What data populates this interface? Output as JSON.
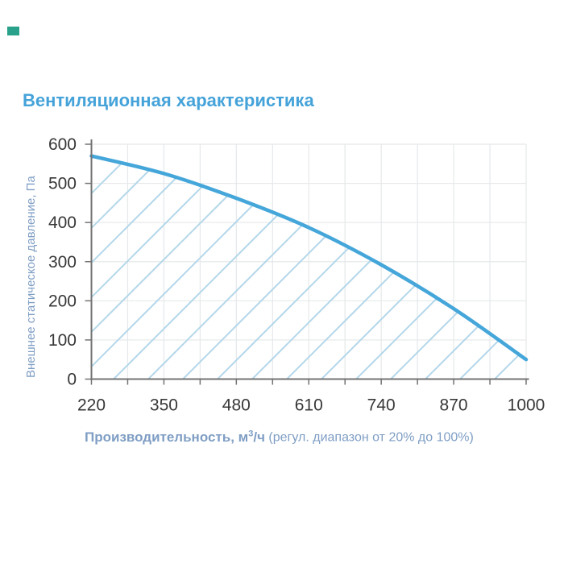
{
  "title": "Вентиляционная характеристика",
  "colors": {
    "title": "#45A3D9",
    "curve": "#45A6DA",
    "hatch": "#B3D7EA",
    "grid": "#E5E8EA",
    "axis": "#737373",
    "tick_text": "#383838",
    "axis_label_text": "#7F9EC4",
    "corner_mark": "#2AA18B",
    "background": "#FFFFFF"
  },
  "chart_data": {
    "type": "line",
    "title": "Вентиляционная характеристика",
    "xlabel": "Производительность, м³/ч (регул. диапазон от 20% до 100%)",
    "xlabel_base": "Производительность, м",
    "xlabel_sup": "3",
    "xlabel_after_sup": "/ч",
    "xlabel_note": "(регул. диапазон от 20% до 100%)",
    "ylabel": "Внешнее статическое давление, Па",
    "x": [
      220,
      350,
      480,
      610,
      740,
      870,
      1000
    ],
    "y": [
      570,
      525,
      462,
      387,
      292,
      180,
      50
    ],
    "x_ticks": [
      220,
      350,
      480,
      610,
      740,
      870,
      1000
    ],
    "y_ticks": [
      0,
      100,
      200,
      300,
      400,
      500,
      600
    ],
    "xlim": [
      220,
      1000
    ],
    "ylim": [
      0,
      600
    ],
    "x_minor_step": 65,
    "grid": true,
    "legend": "none",
    "hatch_under_curve": true
  }
}
